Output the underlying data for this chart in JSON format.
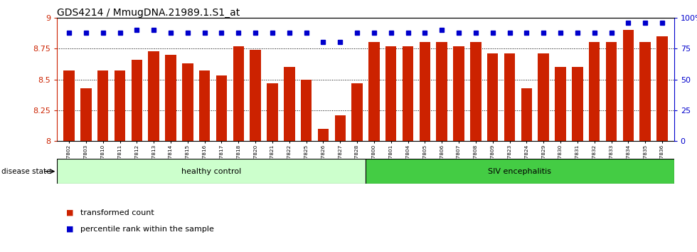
{
  "title": "GDS4214 / MmugDNA.21989.1.S1_at",
  "samples": [
    "GSM347802",
    "GSM347803",
    "GSM347810",
    "GSM347811",
    "GSM347812",
    "GSM347813",
    "GSM347814",
    "GSM347815",
    "GSM347816",
    "GSM347817",
    "GSM347818",
    "GSM347820",
    "GSM347821",
    "GSM347822",
    "GSM347825",
    "GSM347826",
    "GSM347827",
    "GSM347828",
    "GSM347800",
    "GSM347801",
    "GSM347804",
    "GSM347805",
    "GSM347806",
    "GSM347807",
    "GSM347808",
    "GSM347809",
    "GSM347823",
    "GSM347824",
    "GSM347829",
    "GSM347830",
    "GSM347831",
    "GSM347832",
    "GSM347833",
    "GSM347834",
    "GSM347835",
    "GSM347836"
  ],
  "bar_values": [
    8.57,
    8.43,
    8.57,
    8.57,
    8.66,
    8.73,
    8.7,
    8.63,
    8.57,
    8.53,
    8.77,
    8.74,
    8.47,
    8.6,
    8.5,
    8.1,
    8.21,
    8.47,
    8.8,
    8.77,
    8.77,
    8.8,
    8.8,
    8.77,
    8.8,
    8.71,
    8.71,
    8.43,
    8.71,
    8.6,
    8.6,
    8.8,
    8.8,
    8.9,
    8.8,
    8.85
  ],
  "percentile_values": [
    88,
    88,
    88,
    88,
    90,
    90,
    88,
    88,
    88,
    88,
    88,
    88,
    88,
    88,
    88,
    80,
    80,
    88,
    88,
    88,
    88,
    88,
    90,
    88,
    88,
    88,
    88,
    88,
    88,
    88,
    88,
    88,
    88,
    96,
    96,
    96
  ],
  "ylim_left": [
    8.0,
    9.0
  ],
  "ylim_right": [
    0,
    100
  ],
  "yticks_left": [
    8.0,
    8.25,
    8.5,
    8.75,
    9.0
  ],
  "ytick_labels_left": [
    "8",
    "8.25",
    "8.5",
    "8.75",
    "9"
  ],
  "yticks_right": [
    0,
    25,
    50,
    75,
    100
  ],
  "ytick_labels_right": [
    "0",
    "25",
    "50",
    "75",
    "100%"
  ],
  "bar_color": "#CC2200",
  "dot_color": "#0000CC",
  "healthy_count": 18,
  "healthy_label": "healthy control",
  "siv_label": "SIV encephalitis",
  "disease_state_label": "disease state",
  "legend_bar_label": "transformed count",
  "legend_dot_label": "percentile rank within the sample",
  "healthy_bg": "#CCFFCC",
  "siv_bg": "#44CC44",
  "gridline_color": "#000000",
  "title_fontsize": 10,
  "gridlines": [
    8.25,
    8.5,
    8.75
  ]
}
